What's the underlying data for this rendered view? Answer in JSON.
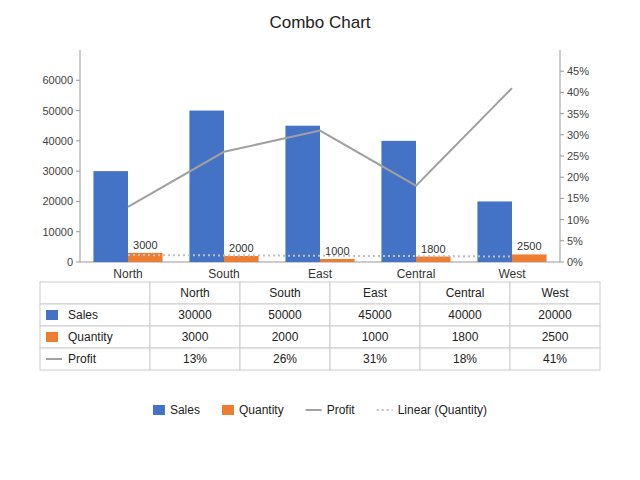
{
  "chart_data": {
    "type": "combo",
    "title": "Combo Chart",
    "categories": [
      "North",
      "South",
      "East",
      "Central",
      "West"
    ],
    "series": [
      {
        "name": "Sales",
        "type": "bar",
        "color": "#4472C4",
        "values": [
          30000,
          50000,
          45000,
          40000,
          20000
        ]
      },
      {
        "name": "Quantity",
        "type": "bar",
        "color": "#ED7D31",
        "values": [
          3000,
          2000,
          1000,
          1800,
          2500
        ],
        "data_labels": true
      },
      {
        "name": "Profit",
        "type": "line",
        "color": "#A0A0A0",
        "axis": "y2",
        "values": [
          0.13,
          0.26,
          0.31,
          0.18,
          0.41
        ],
        "value_labels": [
          "13%",
          "26%",
          "31%",
          "18%",
          "41%"
        ]
      },
      {
        "name": "Linear (Quantity)",
        "type": "trendline",
        "color": "#C0C0C0",
        "axis": "y2",
        "line_style": "dotted",
        "values": [
          0.016428571,
          0.015571429,
          0.014714286,
          0.013857143,
          0.013
        ]
      }
    ],
    "ylim": [
      0,
      70000
    ],
    "yticks": [
      0,
      10000,
      20000,
      30000,
      40000,
      50000,
      60000
    ],
    "y2lim": [
      0,
      0.5
    ],
    "y2ticks": [
      {
        "value": 0.0,
        "label": "0%"
      },
      {
        "value": 0.05,
        "label": "5%"
      },
      {
        "value": 0.1,
        "label": "10%"
      },
      {
        "value": 0.15,
        "label": "15%"
      },
      {
        "value": 0.2,
        "label": "20%"
      },
      {
        "value": 0.25,
        "label": "25%"
      },
      {
        "value": 0.3,
        "label": "30%"
      },
      {
        "value": 0.35,
        "label": "35%"
      },
      {
        "value": 0.4,
        "label": "40%"
      },
      {
        "value": 0.45,
        "label": "45%"
      }
    ],
    "grid": false,
    "legend": "bottom"
  }
}
